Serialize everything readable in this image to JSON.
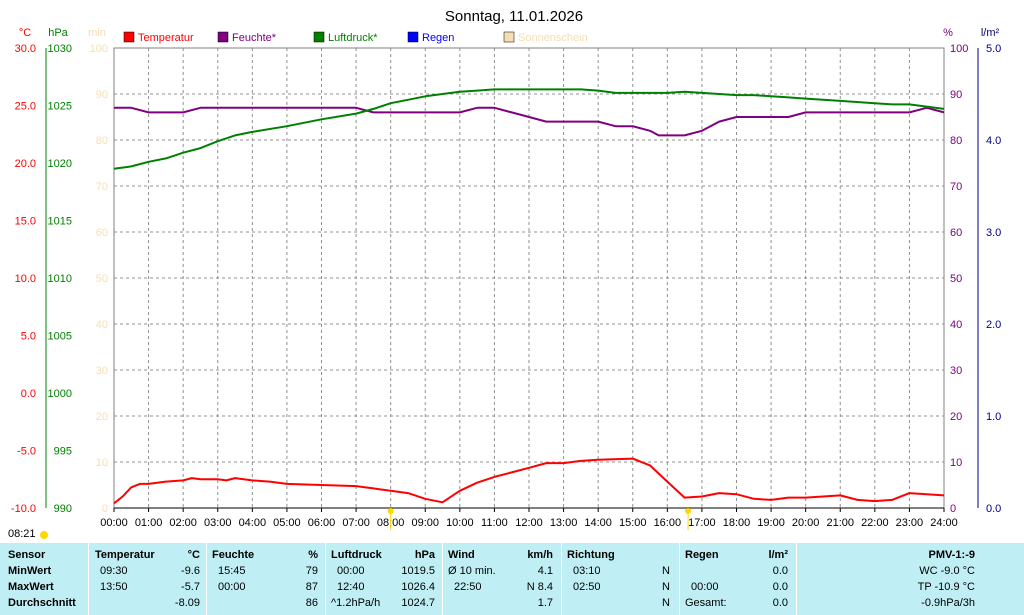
{
  "chart_data": {
    "type": "line",
    "title": "Sonntag, 11.01.2026",
    "x_ticks": [
      "00:00",
      "01:00",
      "02:00",
      "03:00",
      "04:00",
      "05:00",
      "06:00",
      "07:00",
      "08:00",
      "09:00",
      "10:00",
      "11:00",
      "12:00",
      "13:00",
      "14:00",
      "15:00",
      "16:00",
      "17:00",
      "18:00",
      "19:00",
      "20:00",
      "21:00",
      "22:00",
      "23:00",
      "24:00"
    ],
    "axes": {
      "temperature": {
        "unit": "°C",
        "range": [
          -10,
          30
        ],
        "ticks": [
          "30.0",
          "25.0",
          "20.0",
          "15.0",
          "10.0",
          "5.0",
          "0.0",
          "-5.0",
          "-10.0"
        ],
        "color": "#ff0000"
      },
      "pressure": {
        "unit": "hPa",
        "range": [
          990,
          1030
        ],
        "ticks": [
          "1030",
          "1025",
          "1020",
          "1015",
          "1010",
          "1005",
          "1000",
          "995",
          "990"
        ],
        "color": "#008000"
      },
      "sunshine": {
        "unit": "min",
        "range": [
          0,
          100
        ],
        "ticks": [
          "100",
          "90",
          "80",
          "70",
          "60",
          "50",
          "40",
          "30",
          "20",
          "10",
          "0"
        ],
        "color": "#f5deb3"
      },
      "humidity": {
        "unit": "%",
        "range": [
          0,
          100
        ],
        "ticks": [
          "100",
          "90",
          "80",
          "70",
          "60",
          "50",
          "40",
          "30",
          "20",
          "10",
          "0"
        ],
        "color": "#800080"
      },
      "rain": {
        "unit": "l/m²",
        "range": [
          0,
          5
        ],
        "ticks": [
          "5.0",
          "4.0",
          "3.0",
          "2.0",
          "1.0",
          "0.0"
        ],
        "color": "#000080"
      }
    },
    "legend": [
      {
        "name": "Temperatur",
        "color": "#ff0000"
      },
      {
        "name": "Feuchte*",
        "color": "#800080"
      },
      {
        "name": "Luftdruck*",
        "color": "#008000"
      },
      {
        "name": "Regen",
        "color": "#0000ff"
      },
      {
        "name": "Sonnenschein",
        "color": "#f5deb3"
      }
    ],
    "series": [
      {
        "name": "Temperatur",
        "axis": "temperature",
        "color": "#ff0000",
        "x": [
          0,
          0.25,
          0.5,
          0.75,
          1,
          1.5,
          2,
          2.25,
          2.5,
          3,
          3.25,
          3.5,
          4,
          4.5,
          5,
          6,
          7,
          7.5,
          8,
          8.5,
          9,
          9.5,
          10,
          10.5,
          11,
          11.5,
          12,
          12.5,
          13,
          13.5,
          14,
          15,
          15.5,
          16,
          16.5,
          17,
          17.5,
          18,
          18.5,
          19,
          19.5,
          20,
          20.5,
          21,
          21.5,
          22,
          22.5,
          23,
          23.5,
          24
        ],
        "y": [
          -9.6,
          -9.0,
          -8.2,
          -7.9,
          -7.9,
          -7.7,
          -7.6,
          -7.4,
          -7.5,
          -7.5,
          -7.6,
          -7.4,
          -7.6,
          -7.7,
          -7.9,
          -8.0,
          -8.1,
          -8.3,
          -8.5,
          -8.7,
          -9.2,
          -9.5,
          -8.5,
          -7.8,
          -7.3,
          -6.9,
          -6.5,
          -6.1,
          -6.1,
          -5.9,
          -5.8,
          -5.7,
          -6.3,
          -7.7,
          -9.1,
          -9.0,
          -8.7,
          -8.8,
          -9.2,
          -9.3,
          -9.1,
          -9.1,
          -9.0,
          -8.9,
          -9.3,
          -9.4,
          -9.3,
          -8.7,
          -8.8,
          -8.9
        ]
      },
      {
        "name": "Feuchte*",
        "axis": "humidity",
        "color": "#800080",
        "x": [
          0,
          0.5,
          1,
          1.5,
          2,
          2.5,
          3,
          4,
          5,
          6,
          7,
          7.5,
          8,
          9,
          9.5,
          10,
          10.5,
          11,
          11.5,
          12,
          12.5,
          13,
          13.5,
          14,
          14.5,
          15,
          15.5,
          15.75,
          16,
          16.5,
          17,
          17.5,
          18,
          18.5,
          19,
          19.5,
          20,
          21,
          22,
          23,
          23.5,
          24
        ],
        "y": [
          87,
          87,
          86,
          86,
          86,
          87,
          87,
          87,
          87,
          87,
          87,
          86,
          86,
          86,
          86,
          86,
          87,
          87,
          86,
          85,
          84,
          84,
          84,
          84,
          83,
          83,
          82,
          81,
          81,
          81,
          82,
          84,
          85,
          85,
          85,
          85,
          86,
          86,
          86,
          86,
          87,
          86
        ]
      },
      {
        "name": "Luftdruck*",
        "axis": "pressure",
        "color": "#008000",
        "x": [
          0,
          0.5,
          1,
          1.5,
          2,
          2.5,
          3,
          3.5,
          4,
          5,
          6,
          7,
          7.5,
          8,
          8.5,
          9,
          9.5,
          10,
          10.5,
          11,
          11.5,
          12,
          12.5,
          13,
          13.5,
          14,
          14.5,
          15,
          15.5,
          16,
          16.5,
          17,
          17.5,
          18,
          18.5,
          19,
          19.5,
          20,
          21,
          22,
          22.5,
          23,
          23.5,
          24
        ],
        "y": [
          1019.5,
          1019.7,
          1020.1,
          1020.4,
          1020.9,
          1021.3,
          1021.9,
          1022.4,
          1022.7,
          1023.2,
          1023.8,
          1024.3,
          1024.7,
          1025.2,
          1025.5,
          1025.8,
          1026.0,
          1026.2,
          1026.3,
          1026.4,
          1026.4,
          1026.4,
          1026.4,
          1026.4,
          1026.4,
          1026.3,
          1026.1,
          1026.1,
          1026.1,
          1026.1,
          1026.2,
          1026.1,
          1026.0,
          1025.9,
          1025.9,
          1025.8,
          1025.7,
          1025.6,
          1025.4,
          1025.2,
          1025.1,
          1025.1,
          1024.9,
          1024.7
        ]
      }
    ],
    "markers": [
      {
        "x": 8.0,
        "color": "#ffd800"
      },
      {
        "x": 16.6,
        "color": "#ffd800"
      }
    ],
    "grid": true
  },
  "sunrise_time": "08:21",
  "stats": {
    "rows": [
      "Sensor",
      "MinWert",
      "MaxWert",
      "Durchschnitt"
    ],
    "temperature": {
      "title": "Temperatur",
      "unit": "°C",
      "min_time": "09:30",
      "min": "-9.6",
      "max_time": "13:50",
      "max": "-5.7",
      "avg": "-8.09"
    },
    "humidity": {
      "title": "Feuchte",
      "unit": "%",
      "min_time": "15:45",
      "min": "79",
      "max_time": "00:00",
      "max": "87",
      "avg": "86"
    },
    "pressure": {
      "title": "Luftdruck",
      "unit": "hPa",
      "min_time": "00:00",
      "min": "1019.5",
      "max_time": "12:40",
      "max": "1026.4",
      "trend": "^1.2hPa/h",
      "avg": "1024.7"
    },
    "wind": {
      "title": "Wind",
      "unit": "km/h",
      "row1_label": "Ø 10 min.",
      "row1_value": "4.1",
      "row2_label": "22:50",
      "row2_value": "N 8.4",
      "avg": "1.7"
    },
    "direction": {
      "title": "Richtung",
      "row1_time": "03:10",
      "row1_dir": "N",
      "row2_time": "02:50",
      "row2_dir": "N",
      "row3_dir": "N"
    },
    "rain": {
      "title": "Regen",
      "unit": "l/m²",
      "row1_value": "0.0",
      "row2_time": "00:00",
      "row2_value": "0.0",
      "row3_label": "Gesamt:",
      "row3_value": "0.0"
    },
    "pmv": {
      "title": "PMV-1:-9",
      "wc": "WC -9.0 °C",
      "tp": "TP -10.9 °C",
      "trend": "-0.9hPa/3h"
    }
  }
}
